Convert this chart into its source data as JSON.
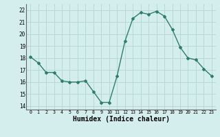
{
  "x": [
    0,
    1,
    2,
    3,
    4,
    5,
    6,
    7,
    8,
    9,
    10,
    11,
    12,
    13,
    14,
    15,
    16,
    17,
    18,
    19,
    20,
    21,
    22,
    23
  ],
  "y": [
    18.1,
    17.6,
    16.8,
    16.8,
    16.1,
    16.0,
    16.0,
    16.1,
    15.2,
    14.3,
    14.3,
    16.5,
    19.4,
    21.3,
    21.8,
    21.65,
    21.9,
    21.5,
    20.4,
    18.9,
    18.0,
    17.85,
    17.1,
    16.5
  ],
  "line_color": "#2e7d6e",
  "marker": "D",
  "markersize": 2.0,
  "linewidth": 1.0,
  "xlabel": "Humidex (Indice chaleur)",
  "xlabel_fontsize": 7,
  "xtick_labels": [
    "0",
    "1",
    "2",
    "3",
    "4",
    "5",
    "6",
    "7",
    "8",
    "9",
    "10",
    "11",
    "12",
    "13",
    "14",
    "15",
    "16",
    "17",
    "18",
    "19",
    "20",
    "21",
    "22",
    "23"
  ],
  "yticks": [
    14,
    15,
    16,
    17,
    18,
    19,
    20,
    21,
    22
  ],
  "ylim": [
    13.7,
    22.5
  ],
  "xlim": [
    -0.5,
    23.5
  ],
  "bg_color": "#d4eded",
  "grid_color": "#b8d8d8"
}
